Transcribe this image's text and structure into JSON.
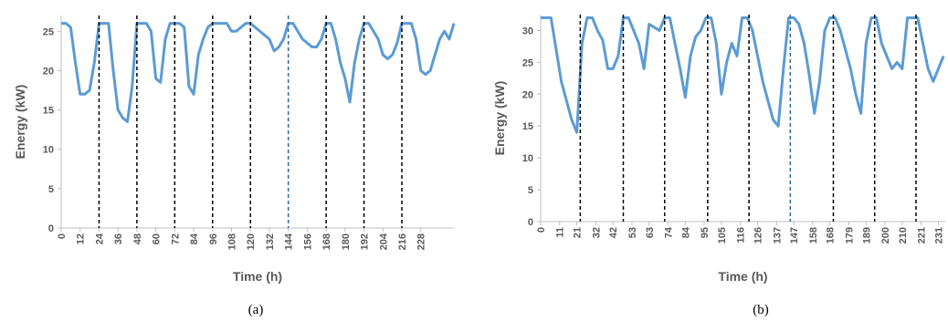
{
  "chart_data": [
    {
      "type": "line",
      "caption": "(a)",
      "xlabel": "Time (h)",
      "ylabel": "Energy (kW)",
      "x": [
        0,
        3,
        6,
        9,
        12,
        15,
        18,
        21,
        24,
        27,
        30,
        33,
        36,
        39,
        42,
        45,
        48,
        51,
        54,
        57,
        60,
        63,
        66,
        69,
        72,
        75,
        78,
        81,
        84,
        87,
        90,
        93,
        96,
        99,
        102,
        105,
        108,
        111,
        114,
        117,
        120,
        123,
        126,
        129,
        132,
        135,
        138,
        141,
        144,
        147,
        150,
        153,
        156,
        159,
        162,
        165,
        168,
        171,
        174,
        177,
        180,
        183,
        186,
        189,
        192,
        195,
        198,
        201,
        204,
        207,
        210,
        213,
        216,
        219,
        222,
        225,
        228,
        231,
        234,
        237,
        240,
        243,
        246,
        249
      ],
      "series": [
        {
          "color": "#5b9bd5",
          "values": [
            26,
            26,
            25.5,
            21,
            17,
            17,
            17.5,
            21,
            26,
            26,
            26,
            20,
            15,
            14,
            13.5,
            18,
            26,
            26,
            26,
            25,
            19,
            18.5,
            24,
            26,
            26,
            26,
            25.5,
            18,
            17,
            22,
            24,
            25.5,
            26,
            26,
            26,
            26,
            25,
            25,
            25.5,
            26,
            26,
            25.5,
            25,
            24.5,
            24,
            22.5,
            23,
            24,
            26,
            26,
            25,
            24,
            23.5,
            23,
            23,
            24,
            26,
            26,
            24,
            21,
            19,
            16,
            21,
            24,
            26,
            26,
            25,
            24,
            22,
            21.5,
            22,
            23.5,
            26,
            26,
            26,
            24,
            20,
            19.5,
            20,
            22,
            24,
            25,
            24,
            26
          ]
        }
      ],
      "xlim": [
        0,
        249
      ],
      "xticks": [
        0,
        12,
        24,
        36,
        48,
        60,
        72,
        84,
        96,
        108,
        120,
        132,
        144,
        156,
        168,
        180,
        192,
        204,
        216,
        228
      ],
      "ylim": [
        0,
        27
      ],
      "yticks": [
        0,
        5,
        10,
        15,
        20,
        25
      ],
      "vlines": [
        {
          "x": 24,
          "color": "#000000"
        },
        {
          "x": 48,
          "color": "#000000"
        },
        {
          "x": 72,
          "color": "#000000"
        },
        {
          "x": 96,
          "color": "#000000"
        },
        {
          "x": 120,
          "color": "#000000"
        },
        {
          "x": 144,
          "color": "#2e6b99"
        },
        {
          "x": 168,
          "color": "#000000"
        },
        {
          "x": 192,
          "color": "#000000"
        },
        {
          "x": 216,
          "color": "#000000"
        }
      ]
    },
    {
      "type": "line",
      "caption": "(b)",
      "xlabel": "Time (h)",
      "ylabel": "Energy (kW)",
      "x": [
        0,
        3,
        6,
        9,
        12,
        15,
        18,
        21,
        24,
        27,
        30,
        33,
        36,
        39,
        42,
        45,
        48,
        51,
        54,
        57,
        60,
        63,
        66,
        69,
        72,
        75,
        78,
        81,
        84,
        87,
        90,
        93,
        96,
        99,
        102,
        105,
        108,
        111,
        114,
        117,
        120,
        123,
        126,
        129,
        132,
        135,
        138,
        141,
        144,
        147,
        150,
        153,
        156,
        159,
        162,
        165,
        168,
        171,
        174,
        177,
        180,
        183,
        186,
        189,
        192,
        195,
        198,
        201,
        204,
        207,
        210,
        213,
        216,
        219,
        222,
        225,
        228,
        231,
        234
      ],
      "series": [
        {
          "color": "#5b9bd5",
          "values": [
            32,
            32,
            32,
            27,
            22,
            19,
            16,
            14,
            28,
            32,
            32,
            30,
            28.5,
            24,
            24,
            26,
            32,
            32,
            30,
            28,
            24,
            31,
            30.5,
            30,
            32,
            32,
            28,
            24,
            19.5,
            26,
            29,
            30,
            32,
            32,
            28,
            20,
            25,
            28,
            26,
            32,
            32,
            30,
            26,
            22,
            19,
            16,
            15,
            24,
            32,
            32,
            31,
            28,
            23,
            17,
            22,
            30,
            32,
            32,
            30,
            27,
            24,
            20,
            17,
            28,
            32,
            32,
            28,
            26,
            24,
            25,
            24,
            32,
            32,
            32,
            28,
            24,
            22,
            24,
            26
          ]
        }
      ],
      "xlim": [
        0,
        235
      ],
      "xticks": [
        0,
        11,
        21,
        32,
        42,
        53,
        63,
        74,
        84,
        95,
        105,
        116,
        126,
        137,
        147,
        158,
        168,
        179,
        189,
        200,
        210,
        221,
        231
      ],
      "ylim": [
        0,
        32.5
      ],
      "yticks": [
        0,
        5,
        10,
        15,
        20,
        25,
        30
      ],
      "vlines": [
        {
          "x": 23,
          "color": "#000000"
        },
        {
          "x": 48,
          "color": "#000000"
        },
        {
          "x": 72,
          "color": "#000000"
        },
        {
          "x": 97,
          "color": "#000000"
        },
        {
          "x": 121,
          "color": "#000000"
        },
        {
          "x": 145,
          "color": "#2e6b99"
        },
        {
          "x": 170,
          "color": "#000000"
        },
        {
          "x": 194,
          "color": "#000000"
        },
        {
          "x": 218,
          "color": "#000000"
        }
      ]
    }
  ]
}
